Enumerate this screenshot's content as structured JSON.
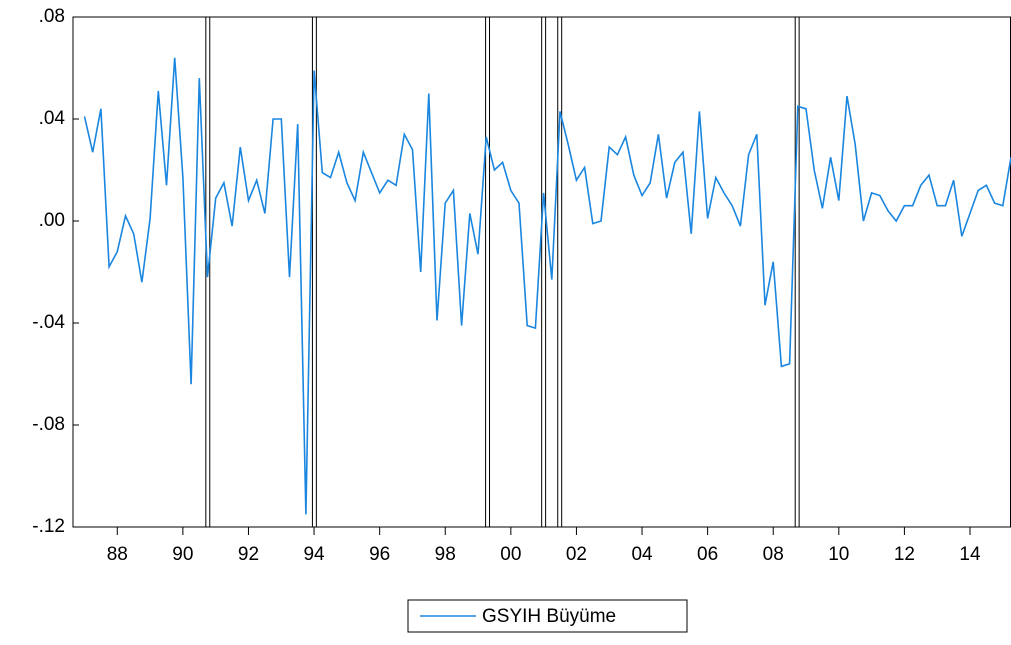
{
  "chart_data": {
    "type": "line",
    "x": [
      1987,
      1987.25,
      1987.5,
      1987.75,
      1988,
      1988.25,
      1988.5,
      1988.75,
      1989,
      1989.25,
      1989.5,
      1989.75,
      1990,
      1990.25,
      1990.5,
      1990.75,
      1991,
      1991.25,
      1991.5,
      1991.75,
      1992,
      1992.25,
      1992.5,
      1992.75,
      1993,
      1993.25,
      1993.5,
      1993.75,
      1994,
      1994.25,
      1994.5,
      1994.75,
      1995,
      1995.25,
      1995.5,
      1995.75,
      1996,
      1996.25,
      1996.5,
      1996.75,
      1997,
      1997.25,
      1997.5,
      1997.75,
      1998,
      1998.25,
      1998.5,
      1998.75,
      1999,
      1999.25,
      1999.5,
      1999.75,
      2000,
      2000.25,
      2000.5,
      2000.75,
      2001,
      2001.25,
      2001.5,
      2001.75,
      2002,
      2002.25,
      2002.5,
      2002.75,
      2003,
      2003.25,
      2003.5,
      2003.75,
      2004,
      2004.25,
      2004.5,
      2004.75,
      2005,
      2005.25,
      2005.5,
      2005.75,
      2006,
      2006.25,
      2006.5,
      2006.75,
      2007,
      2007.25,
      2007.5,
      2007.75,
      2008,
      2008.25,
      2008.5,
      2008.75,
      2009,
      2009.25,
      2009.5,
      2009.75,
      2010,
      2010.25,
      2010.5,
      2010.75,
      2011,
      2011.25,
      2011.5,
      2011.75,
      2012,
      2012.25,
      2012.5,
      2012.75,
      2013,
      2013.25,
      2013.5,
      2013.75,
      2014,
      2014.25,
      2014.5,
      2014.75,
      2015,
      2015.25
    ],
    "series": [
      {
        "name": "GSYIH Büyüme",
        "color": "#1a86e0",
        "values": [
          0.041,
          0.027,
          0.044,
          -0.018,
          -0.012,
          0.002,
          -0.005,
          -0.024,
          0.001,
          0.051,
          0.014,
          0.064,
          0.017,
          -0.064,
          0.056,
          -0.022,
          0.009,
          0.015,
          -0.002,
          0.029,
          0.008,
          0.016,
          0.003,
          0.04,
          0.04,
          -0.022,
          0.038,
          -0.115,
          0.059,
          0.019,
          0.017,
          0.027,
          0.015,
          0.008,
          0.027,
          0.019,
          0.011,
          0.016,
          0.014,
          0.034,
          0.028,
          -0.02,
          0.05,
          -0.039,
          0.007,
          0.012,
          -0.041,
          0.003,
          -0.013,
          0.033,
          0.02,
          0.023,
          0.012,
          0.007,
          -0.041,
          -0.042,
          0.011,
          -0.023,
          0.043,
          0.03,
          0.016,
          0.021,
          -0.001,
          0.0,
          0.029,
          0.026,
          0.033,
          0.018,
          0.01,
          0.015,
          0.034,
          0.009,
          0.023,
          0.027,
          -0.005,
          0.043,
          0.001,
          0.017,
          0.011,
          0.006,
          -0.002,
          0.026,
          0.034,
          -0.033,
          -0.016,
          -0.057,
          -0.056,
          0.045,
          0.044,
          0.02,
          0.005,
          0.025,
          0.008,
          0.049,
          0.03,
          0.0,
          0.011,
          0.01,
          0.004,
          0.0,
          0.006,
          0.006,
          0.014,
          0.018,
          0.006,
          0.006,
          0.016,
          -0.006,
          0.003,
          0.012,
          0.014,
          0.007,
          0.006,
          0.025
        ]
      }
    ],
    "bands": [
      [
        1990.7,
        1990.82
      ],
      [
        1993.95,
        1994.07
      ],
      [
        1999.23,
        1999.35
      ],
      [
        2000.94,
        2001.06
      ],
      [
        2001.43,
        2001.55
      ],
      [
        2008.67,
        2008.79
      ]
    ],
    "xlim": [
      1986.65,
      2015.25
    ],
    "xticks": [
      {
        "value": 1988,
        "label": "88"
      },
      {
        "value": 1990,
        "label": "90"
      },
      {
        "value": 1992,
        "label": "92"
      },
      {
        "value": 1994,
        "label": "94"
      },
      {
        "value": 1996,
        "label": "96"
      },
      {
        "value": 1998,
        "label": "98"
      },
      {
        "value": 2000,
        "label": "00"
      },
      {
        "value": 2002,
        "label": "02"
      },
      {
        "value": 2004,
        "label": "04"
      },
      {
        "value": 2006,
        "label": "06"
      },
      {
        "value": 2008,
        "label": "08"
      },
      {
        "value": 2010,
        "label": "10"
      },
      {
        "value": 2012,
        "label": "12"
      },
      {
        "value": 2014,
        "label": "14"
      }
    ],
    "ylim": [
      -0.12,
      0.08
    ],
    "yticks": [
      {
        "value": 0.08,
        "label": ".08"
      },
      {
        "value": 0.04,
        "label": ".04"
      },
      {
        "value": 0,
        "label": ".00"
      },
      {
        "value": -0.04,
        "label": "-.04"
      },
      {
        "value": -0.08,
        "label": "-.08"
      },
      {
        "value": -0.12,
        "label": "-.12"
      }
    ],
    "grid": false,
    "legend": "bottom"
  }
}
